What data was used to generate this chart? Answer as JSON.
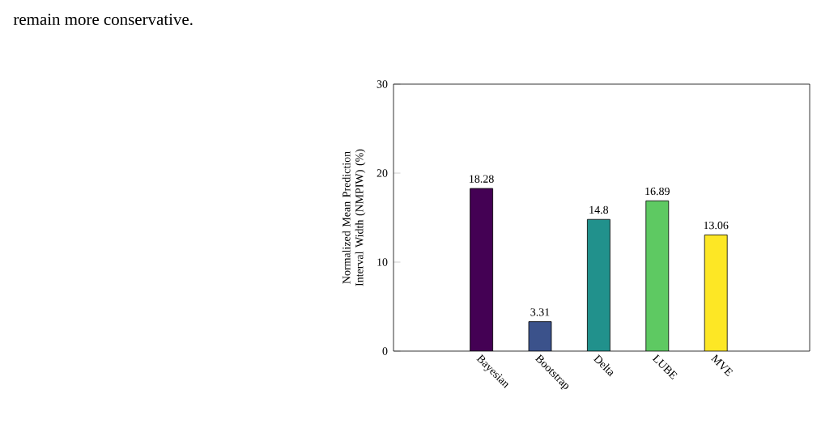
{
  "chart_data": {
    "type": "bar",
    "ylabel": "Normalized Mean Prediction Interval Width (NMPIW) (%)",
    "categories": [
      "Bayesian",
      "Bootstrap",
      "Delta",
      "LUBE",
      "MVE"
    ],
    "values": [
      18.28,
      3.31,
      14.8,
      16.89,
      13.06
    ],
    "colors": [
      "#440154",
      "#3b528b",
      "#21918c",
      "#5ec962",
      "#fde725"
    ],
    "ylim": [
      0,
      30
    ],
    "yticks": [
      0,
      10,
      20,
      30
    ],
    "data_labels": true,
    "annotations": [
      "remain more conservative."
    ]
  }
}
